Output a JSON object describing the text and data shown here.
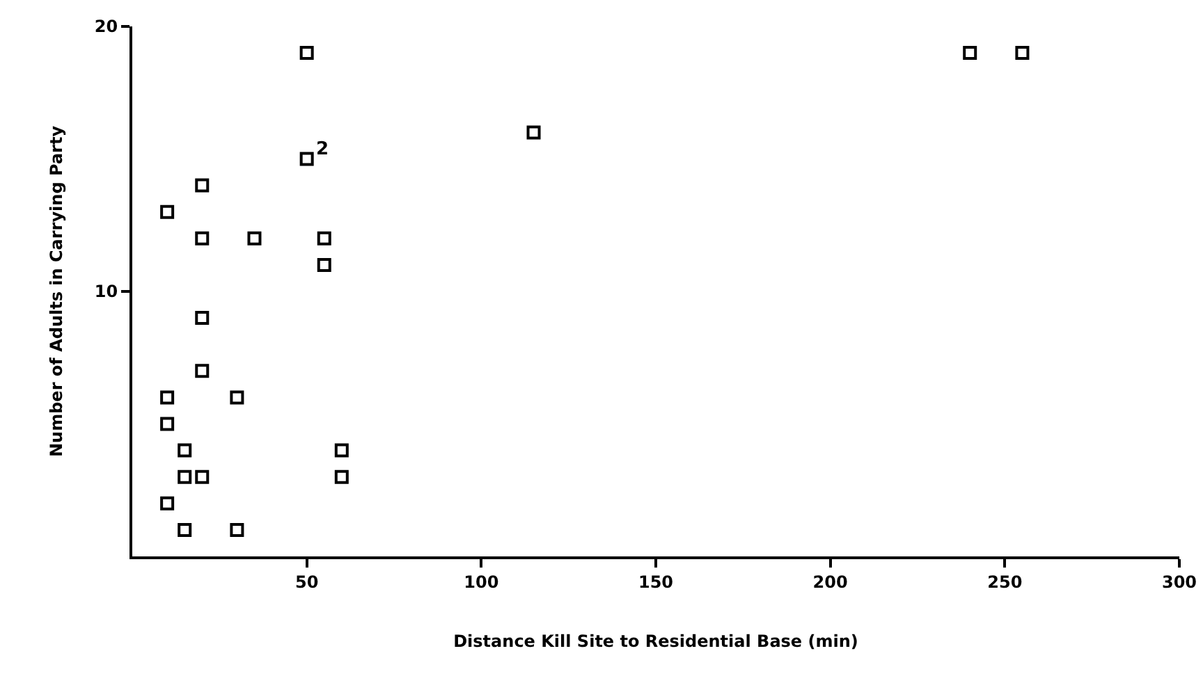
{
  "chart_data": {
    "type": "scatter",
    "xlabel": "Distance Kill Site to Residential Base (min)",
    "ylabel": "Number of Adults in Carrying Party",
    "x": [
      50,
      240,
      255,
      115,
      50,
      20,
      10,
      20,
      35,
      55,
      55,
      20,
      20,
      10,
      30,
      10,
      15,
      60,
      15,
      20,
      60,
      10,
      15,
      30
    ],
    "values": [
      19,
      19,
      19,
      16,
      15,
      14,
      13,
      12,
      12,
      12,
      11,
      9,
      7,
      6,
      6,
      5,
      4,
      4,
      3,
      3,
      3,
      2,
      1,
      1
    ],
    "color": "#000000",
    "marker": "square",
    "xlim": [
      0,
      300
    ],
    "xticks": [
      50,
      100,
      150,
      200,
      250,
      300
    ],
    "ylim": [
      0,
      20
    ],
    "yticks": [
      10,
      20
    ],
    "annotations": [
      {
        "text": "2",
        "x": 50,
        "y": 15
      }
    ],
    "grid": false,
    "legend": false
  }
}
